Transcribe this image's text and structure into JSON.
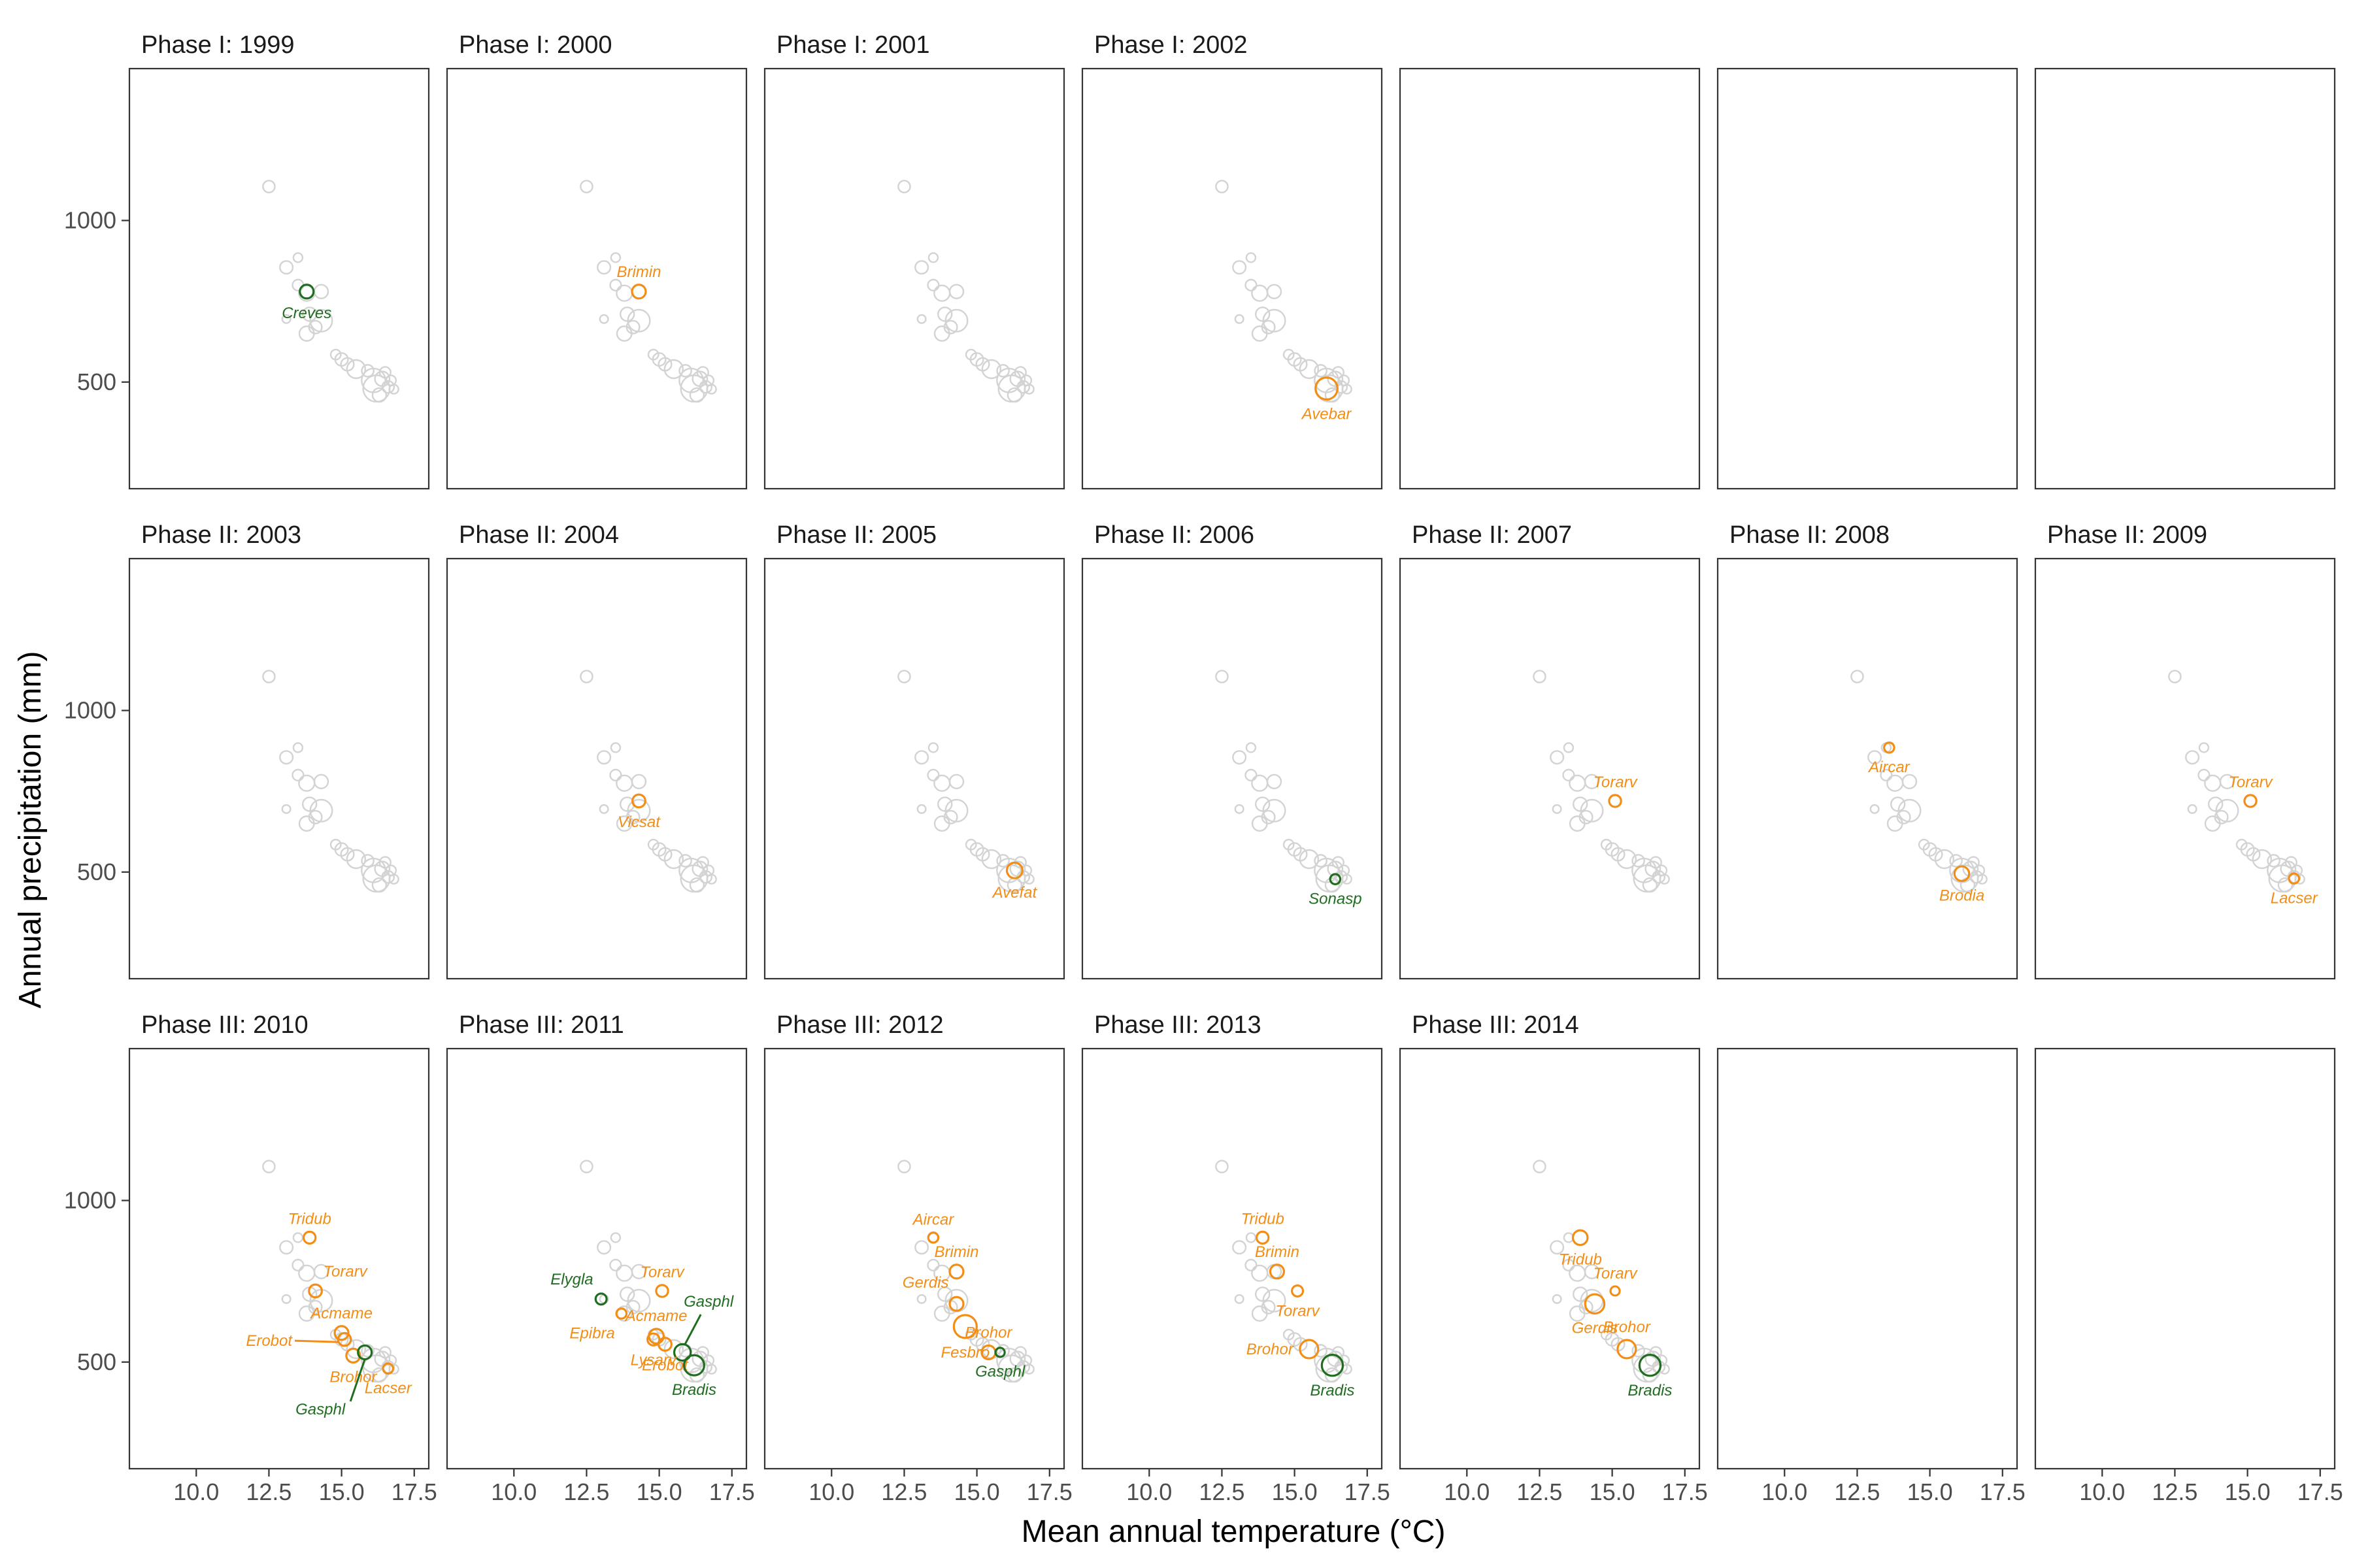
{
  "chart_data": {
    "type": "scatter",
    "xlabel": "Mean annual temperature (°C)",
    "ylabel": "Annual precipitation (mm)",
    "xlim": [
      7.7,
      18.0
    ],
    "ylim": [
      170,
      1470
    ],
    "xticks": [
      "10.0",
      "12.5",
      "15.0",
      "17.5"
    ],
    "xtick_values": [
      10.0,
      12.5,
      15.0,
      17.5
    ],
    "yticks": [
      "500",
      "1000"
    ],
    "ytick_values": [
      500,
      1000
    ],
    "grid": false,
    "layout": "facet grid, 3 rows x 7 columns",
    "colors": {
      "background_point": "#d3d3d3",
      "orange": "#f28e16",
      "green": "#1f6e1f",
      "frame": "#333333"
    },
    "background_points": [
      {
        "x": 12.5,
        "y": 1105,
        "r": 1.3
      },
      {
        "x": 13.1,
        "y": 855,
        "r": 1.4
      },
      {
        "x": 13.5,
        "y": 885,
        "r": 1.0
      },
      {
        "x": 13.5,
        "y": 800,
        "r": 1.2
      },
      {
        "x": 13.8,
        "y": 775,
        "r": 1.7
      },
      {
        "x": 14.3,
        "y": 780,
        "r": 1.5
      },
      {
        "x": 13.9,
        "y": 710,
        "r": 1.5
      },
      {
        "x": 14.3,
        "y": 690,
        "r": 2.4
      },
      {
        "x": 13.8,
        "y": 650,
        "r": 1.6
      },
      {
        "x": 13.1,
        "y": 695,
        "r": 0.9
      },
      {
        "x": 14.1,
        "y": 670,
        "r": 1.4
      },
      {
        "x": 14.8,
        "y": 585,
        "r": 1.1
      },
      {
        "x": 15.0,
        "y": 570,
        "r": 1.4
      },
      {
        "x": 15.2,
        "y": 555,
        "r": 1.4
      },
      {
        "x": 15.5,
        "y": 540,
        "r": 2.0
      },
      {
        "x": 15.9,
        "y": 535,
        "r": 1.3
      },
      {
        "x": 16.1,
        "y": 505,
        "r": 2.6
      },
      {
        "x": 16.2,
        "y": 480,
        "r": 2.9
      },
      {
        "x": 16.4,
        "y": 510,
        "r": 1.6
      },
      {
        "x": 16.6,
        "y": 485,
        "r": 1.3
      },
      {
        "x": 16.8,
        "y": 478,
        "r": 1.0
      },
      {
        "x": 16.3,
        "y": 460,
        "r": 1.5
      },
      {
        "x": 16.5,
        "y": 530,
        "r": 1.2
      },
      {
        "x": 16.7,
        "y": 505,
        "r": 1.1
      }
    ],
    "panels": [
      {
        "title": "Phase I: 1999",
        "row": 0,
        "col": 0,
        "highlights": [
          {
            "label": "Creves",
            "x": 13.8,
            "y": 780,
            "r": 1.5,
            "color": "green",
            "label_pos": "below"
          }
        ]
      },
      {
        "title": "Phase I: 2000",
        "row": 0,
        "col": 1,
        "highlights": [
          {
            "label": "Brimin",
            "x": 14.3,
            "y": 780,
            "r": 1.5,
            "color": "orange",
            "label_pos": "above"
          }
        ]
      },
      {
        "title": "Phase I: 2001",
        "row": 0,
        "col": 2,
        "highlights": []
      },
      {
        "title": "Phase I: 2002",
        "row": 0,
        "col": 3,
        "highlights": [
          {
            "label": "Avebar",
            "x": 16.1,
            "y": 480,
            "r": 2.4,
            "color": "orange",
            "label_pos": "below"
          }
        ]
      },
      {
        "title": "",
        "row": 0,
        "col": 4,
        "empty": true,
        "highlights": []
      },
      {
        "title": "",
        "row": 0,
        "col": 5,
        "empty": true,
        "highlights": []
      },
      {
        "title": "",
        "row": 0,
        "col": 6,
        "empty": true,
        "highlights": []
      },
      {
        "title": "Phase II: 2003",
        "row": 1,
        "col": 0,
        "highlights": []
      },
      {
        "title": "Phase II: 2004",
        "row": 1,
        "col": 1,
        "highlights": [
          {
            "label": "Vicsat",
            "x": 14.3,
            "y": 720,
            "r": 1.4,
            "color": "orange",
            "label_pos": "below"
          }
        ]
      },
      {
        "title": "Phase II: 2005",
        "row": 1,
        "col": 2,
        "highlights": [
          {
            "label": "Avefat",
            "x": 16.3,
            "y": 505,
            "r": 1.7,
            "color": "orange",
            "label_pos": "below"
          }
        ]
      },
      {
        "title": "Phase II: 2006",
        "row": 1,
        "col": 3,
        "highlights": [
          {
            "label": "Sonasp",
            "x": 16.4,
            "y": 478,
            "r": 1.1,
            "color": "green",
            "label_pos": "below"
          }
        ]
      },
      {
        "title": "Phase II: 2007",
        "row": 1,
        "col": 4,
        "highlights": [
          {
            "label": "Torarv",
            "x": 15.1,
            "y": 720,
            "r": 1.3,
            "color": "orange",
            "label_pos": "above"
          }
        ]
      },
      {
        "title": "Phase II: 2008",
        "row": 1,
        "col": 5,
        "highlights": [
          {
            "label": "Aircar",
            "x": 13.6,
            "y": 885,
            "r": 1.1,
            "color": "orange",
            "label_pos": "below"
          },
          {
            "label": "Brodia",
            "x": 16.1,
            "y": 495,
            "r": 1.6,
            "color": "orange",
            "label_pos": "below"
          }
        ]
      },
      {
        "title": "Phase II: 2009",
        "row": 1,
        "col": 6,
        "highlights": [
          {
            "label": "Torarv",
            "x": 15.1,
            "y": 720,
            "r": 1.3,
            "color": "orange",
            "label_pos": "above"
          },
          {
            "label": "Lacser",
            "x": 16.6,
            "y": 480,
            "r": 1.1,
            "color": "orange",
            "label_pos": "below"
          }
        ]
      },
      {
        "title": "Phase III: 2010",
        "row": 2,
        "col": 0,
        "highlights": [
          {
            "label": "Tridub",
            "x": 13.9,
            "y": 885,
            "r": 1.3,
            "color": "orange",
            "label_pos": "above"
          },
          {
            "label": "Torarv",
            "x": 14.1,
            "y": 720,
            "r": 1.4,
            "color": "orange",
            "label_pos": "above-right"
          },
          {
            "label": "Acmame",
            "x": 15.0,
            "y": 590,
            "r": 1.5,
            "color": "orange",
            "label_pos": "above"
          },
          {
            "label": "Erobot",
            "x": 15.1,
            "y": 570,
            "r": 1.4,
            "color": "orange",
            "label_pos": "left-leader"
          },
          {
            "label": "Brohor",
            "x": 15.4,
            "y": 520,
            "r": 1.5,
            "color": "orange",
            "label_pos": "below"
          },
          {
            "label": "Gasphl",
            "x": 15.8,
            "y": 530,
            "r": 1.5,
            "color": "green",
            "label_pos": "below-leader"
          },
          {
            "label": "Lacser",
            "x": 16.6,
            "y": 480,
            "r": 1.1,
            "color": "orange",
            "label_pos": "below"
          }
        ]
      },
      {
        "title": "Phase III: 2011",
        "row": 2,
        "col": 1,
        "highlights": [
          {
            "label": "Elygla",
            "x": 13.0,
            "y": 695,
            "r": 1.2,
            "color": "green",
            "label_pos": "above-left"
          },
          {
            "label": "Torarv",
            "x": 15.1,
            "y": 720,
            "r": 1.3,
            "color": "orange",
            "label_pos": "above"
          },
          {
            "label": "Epibra",
            "x": 13.7,
            "y": 650,
            "r": 1.1,
            "color": "orange",
            "label_pos": "below-left"
          },
          {
            "label": "Acmame",
            "x": 14.9,
            "y": 580,
            "r": 1.6,
            "color": "orange",
            "label_pos": "above"
          },
          {
            "label": "Gasphl",
            "x": 15.8,
            "y": 530,
            "r": 1.8,
            "color": "green",
            "label_pos": "above-leader"
          },
          {
            "label": "Erobot",
            "x": 15.2,
            "y": 555,
            "r": 1.4,
            "color": "orange",
            "label_pos": "below"
          },
          {
            "label": "Lysarv",
            "x": 14.8,
            "y": 570,
            "r": 1.3,
            "color": "orange",
            "label_pos": "below"
          },
          {
            "label": "Bradis",
            "x": 16.2,
            "y": 490,
            "r": 2.2,
            "color": "green",
            "label_pos": "below"
          }
        ]
      },
      {
        "title": "Phase III: 2012",
        "row": 2,
        "col": 2,
        "highlights": [
          {
            "label": "Aircar",
            "x": 13.5,
            "y": 885,
            "r": 1.1,
            "color": "orange",
            "label_pos": "above"
          },
          {
            "label": "Brimin",
            "x": 14.3,
            "y": 780,
            "r": 1.5,
            "color": "orange",
            "label_pos": "above"
          },
          {
            "label": "Gerdis",
            "x": 14.3,
            "y": 680,
            "r": 1.5,
            "color": "orange",
            "label_pos": "above-left"
          },
          {
            "label": "Fesbro",
            "x": 14.6,
            "y": 610,
            "r": 2.5,
            "color": "orange",
            "label_pos": "below"
          },
          {
            "label": "Brohor",
            "x": 15.4,
            "y": 530,
            "r": 1.5,
            "color": "orange",
            "label_pos": "above"
          },
          {
            "label": "Gasphl",
            "x": 15.8,
            "y": 530,
            "r": 1.0,
            "color": "green",
            "label_pos": "below"
          }
        ]
      },
      {
        "title": "Phase III: 2013",
        "row": 2,
        "col": 3,
        "highlights": [
          {
            "label": "Tridub",
            "x": 13.9,
            "y": 885,
            "r": 1.3,
            "color": "orange",
            "label_pos": "above"
          },
          {
            "label": "Brimin",
            "x": 14.4,
            "y": 780,
            "r": 1.5,
            "color": "orange",
            "label_pos": "above"
          },
          {
            "label": "Torarv",
            "x": 15.1,
            "y": 720,
            "r": 1.2,
            "color": "orange",
            "label_pos": "below"
          },
          {
            "label": "Brohor",
            "x": 15.5,
            "y": 540,
            "r": 2.0,
            "color": "orange",
            "label_pos": "left"
          },
          {
            "label": "Bradis",
            "x": 16.3,
            "y": 490,
            "r": 2.3,
            "color": "green",
            "label_pos": "below"
          }
        ]
      },
      {
        "title": "Phase III: 2014",
        "row": 2,
        "col": 4,
        "highlights": [
          {
            "label": "Tridub",
            "x": 13.9,
            "y": 885,
            "r": 1.6,
            "color": "orange",
            "label_pos": "below"
          },
          {
            "label": "Torarv",
            "x": 15.1,
            "y": 720,
            "r": 1.0,
            "color": "orange",
            "label_pos": "above"
          },
          {
            "label": "Gerdis",
            "x": 14.4,
            "y": 680,
            "r": 2.1,
            "color": "orange",
            "label_pos": "below"
          },
          {
            "label": "Brohor",
            "x": 15.5,
            "y": 540,
            "r": 2.0,
            "color": "orange",
            "label_pos": "above"
          },
          {
            "label": "Bradis",
            "x": 16.3,
            "y": 490,
            "r": 2.3,
            "color": "green",
            "label_pos": "below"
          }
        ]
      },
      {
        "title": "",
        "row": 2,
        "col": 5,
        "empty": true,
        "highlights": []
      },
      {
        "title": "",
        "row": 2,
        "col": 6,
        "empty": true,
        "highlights": []
      }
    ]
  }
}
